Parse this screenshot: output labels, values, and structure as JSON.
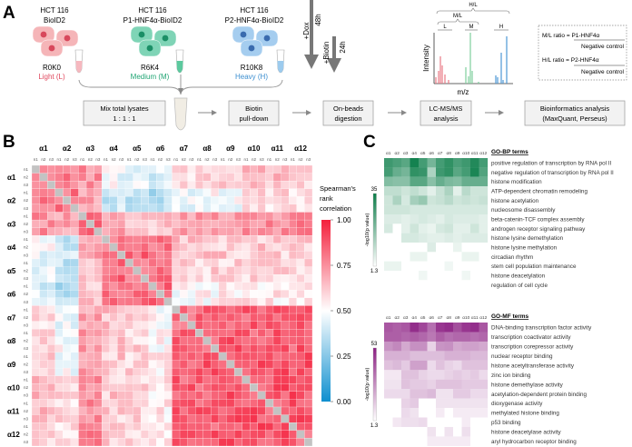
{
  "panel_labels": {
    "a": "A",
    "b": "B",
    "c": "C"
  },
  "panel_a": {
    "groups": [
      {
        "line1": "HCT 116",
        "line2": "BioID2",
        "label": "R0K0",
        "label_sub": "Light (L)",
        "color": "#e0485e",
        "cell": "#f5b5b8",
        "nucleus": "#d8485c",
        "tube": "#f6b8bf"
      },
      {
        "line1": "HCT 116",
        "line2": "P1-HNF4α-BioID2",
        "label": "R6K4",
        "label_sub": "Medium (M)",
        "color": "#21a574",
        "cell": "#7fd4b6",
        "nucleus": "#1b8f66",
        "tube": "#5cc99e"
      },
      {
        "line1": "HCT 116",
        "line2": "P2-HNF4α-BioID2",
        "label": "R10K8",
        "label_sub": "Heavy (H)",
        "color": "#3d8fd0",
        "cell": "#a5cdef",
        "nucleus": "#3a6bae",
        "tube": "#9ccbee"
      }
    ],
    "dox": {
      "label": "+Dox",
      "time": "48h"
    },
    "biotin": {
      "label": "+Biotin",
      "time": "24h"
    },
    "spectrum": {
      "ylabel": "Intensity",
      "xlabel": "m/z",
      "hl": "H/L",
      "ml": "M/L",
      "l": "L",
      "m": "M",
      "h": "H"
    },
    "ratio_box": {
      "ml_left": "M/L ratio = P1-HNF4α",
      "ml_den": "Negative control",
      "hl_left": "H/L ratio = P2-HNF4α",
      "hl_den": "Negative control"
    },
    "workflow": [
      {
        "line1": "Mix total lysates",
        "line2": "1 : 1 : 1"
      },
      {
        "line1": "Biotin",
        "line2": "pull-down"
      },
      {
        "line1": "On-beads",
        "line2": "digestion"
      },
      {
        "line1": "LC-MS/MS",
        "line2": "analysis"
      },
      {
        "line1": "Bioinformatics analysis",
        "line2": "(MaxQuant, Perseus)"
      }
    ]
  },
  "chart_data": [
    {
      "type": "heatmap",
      "title": "Spearman's rank correlation",
      "legend_title": [
        "Spearman's",
        "rank",
        "correlation"
      ],
      "legend_ticks": [
        "1.00",
        "0.75",
        "0.50",
        "0.25",
        "0.00"
      ],
      "range": [
        0,
        1
      ],
      "groups": [
        "α1",
        "α2",
        "α3",
        "α4",
        "α5",
        "α6",
        "α7",
        "α8",
        "α9",
        "α10",
        "α11",
        "α12"
      ],
      "replicates": [
        "n1",
        "n2",
        "n3"
      ],
      "colors": {
        "low": "#0e8fcf",
        "mid": "#ffffff",
        "high": "#f4203c",
        "diagonal": "#c3c3c3"
      },
      "group_mean_correlation": [
        [
          1.0,
          0.8,
          0.74,
          0.48,
          0.44,
          0.42,
          0.58,
          0.59,
          0.6,
          0.64,
          0.64,
          0.62
        ],
        [
          0.8,
          1.0,
          0.72,
          0.38,
          0.36,
          0.33,
          0.48,
          0.5,
          0.49,
          0.58,
          0.58,
          0.56
        ],
        [
          0.74,
          0.72,
          1.0,
          0.69,
          0.66,
          0.64,
          0.71,
          0.72,
          0.74,
          0.75,
          0.75,
          0.77
        ],
        [
          0.48,
          0.38,
          0.69,
          1.0,
          0.84,
          0.8,
          0.64,
          0.64,
          0.62,
          0.62,
          0.61,
          0.62
        ],
        [
          0.44,
          0.36,
          0.66,
          0.84,
          1.0,
          0.8,
          0.6,
          0.6,
          0.59,
          0.6,
          0.6,
          0.6
        ],
        [
          0.42,
          0.33,
          0.64,
          0.8,
          0.8,
          1.0,
          0.5,
          0.52,
          0.54,
          0.55,
          0.55,
          0.55
        ],
        [
          0.58,
          0.48,
          0.71,
          0.64,
          0.6,
          0.5,
          1.0,
          0.86,
          0.85,
          0.85,
          0.86,
          0.85
        ],
        [
          0.59,
          0.5,
          0.72,
          0.64,
          0.6,
          0.52,
          0.86,
          1.0,
          0.86,
          0.86,
          0.86,
          0.86
        ],
        [
          0.6,
          0.49,
          0.74,
          0.62,
          0.59,
          0.54,
          0.85,
          0.86,
          1.0,
          0.87,
          0.87,
          0.88
        ],
        [
          0.64,
          0.58,
          0.75,
          0.62,
          0.6,
          0.55,
          0.85,
          0.86,
          0.87,
          1.0,
          0.88,
          0.88
        ],
        [
          0.64,
          0.58,
          0.75,
          0.61,
          0.6,
          0.55,
          0.86,
          0.86,
          0.87,
          0.88,
          1.0,
          0.88
        ],
        [
          0.62,
          0.56,
          0.77,
          0.62,
          0.6,
          0.55,
          0.85,
          0.86,
          0.88,
          0.88,
          0.88,
          1.0
        ]
      ]
    },
    {
      "type": "heatmap",
      "title": "GO-BP terms",
      "colorbar_label": "-log10(p value)",
      "range": [
        1.3,
        35
      ],
      "range_labels": [
        "35",
        "1.3"
      ],
      "color_high": "#0b7d49",
      "columns": [
        "α1",
        "α2",
        "α3",
        "α4",
        "α5",
        "α6",
        "α7",
        "α8",
        "α9",
        "α10",
        "α11",
        "α12"
      ],
      "rows": [
        {
          "term": "positive regulation of transcription by RNA pol II",
          "values": [
            28,
            26,
            24,
            34,
            27,
            20,
            27,
            30,
            26,
            28,
            32,
            27
          ]
        },
        {
          "term": "negative regulation of transcription by RNA pol II",
          "values": [
            27,
            22,
            20,
            30,
            29,
            12,
            28,
            30,
            24,
            27,
            33,
            25
          ]
        },
        {
          "term": "histone modification",
          "values": [
            18,
            17,
            17,
            24,
            24,
            17,
            22,
            19,
            18,
            22,
            22,
            22
          ]
        },
        {
          "term": "ATP-dependent chromatin remodeling",
          "values": [
            9,
            9,
            7,
            9,
            7,
            4,
            8,
            12,
            4,
            10,
            7,
            7
          ]
        },
        {
          "term": "histone acetylation",
          "values": [
            7,
            12,
            6,
            13,
            15,
            7,
            8,
            10,
            7,
            8,
            7,
            8
          ]
        },
        {
          "term": "nucleosome disassembly",
          "values": [
            7,
            7,
            7,
            6,
            6,
            6,
            6,
            6,
            6,
            6,
            6,
            6
          ]
        },
        {
          "term": "beta-catenin-TCF complex assembly",
          "values": [
            5,
            5,
            4,
            5,
            6,
            5,
            4,
            6,
            5,
            5,
            5,
            4
          ]
        },
        {
          "term": "androgen receptor signaling pathway",
          "values": [
            6,
            null,
            4,
            7,
            4,
            3,
            6,
            7,
            4,
            4,
            7,
            4
          ]
        },
        {
          "term": "histone lysine demethylation",
          "values": [
            null,
            null,
            6,
            6,
            5,
            4,
            4,
            5,
            4,
            5,
            5,
            5
          ]
        },
        {
          "term": "histone lysine methylation",
          "values": [
            null,
            null,
            null,
            null,
            null,
            5,
            null,
            null,
            3,
            null,
            null,
            null
          ]
        },
        {
          "term": "circadian rhythm",
          "values": [
            null,
            null,
            null,
            3,
            3,
            null,
            null,
            null,
            null,
            3,
            3,
            null
          ]
        },
        {
          "term": "stem cell population maintenance",
          "values": [
            3,
            3,
            null,
            null,
            null,
            null,
            null,
            2,
            null,
            null,
            null,
            null
          ]
        },
        {
          "term": "histone deacetylation",
          "values": [
            null,
            null,
            null,
            null,
            2,
            null,
            null,
            null,
            null,
            2,
            null,
            null
          ]
        },
        {
          "term": "regulation of cell cycle",
          "values": [
            null,
            null,
            null,
            null,
            null,
            null,
            null,
            null,
            null,
            null,
            null,
            null
          ]
        }
      ]
    },
    {
      "type": "heatmap",
      "title": "GO-MF terms",
      "colorbar_label": "-log10(p value)",
      "range": [
        1.3,
        53
      ],
      "range_labels": [
        "53",
        "1.3"
      ],
      "color_high": "#8c1f83",
      "columns": [
        "α1",
        "α2",
        "α3",
        "α4",
        "α5",
        "α6",
        "α7",
        "α8",
        "α9",
        "α10",
        "α11",
        "α12"
      ],
      "rows": [
        {
          "term": "DNA-binding transcription factor activity",
          "values": [
            40,
            38,
            40,
            50,
            44,
            34,
            48,
            50,
            42,
            48,
            50,
            40
          ]
        },
        {
          "term": "transcription coactivator activity",
          "values": [
            38,
            38,
            36,
            38,
            36,
            32,
            38,
            34,
            36,
            36,
            34,
            36
          ]
        },
        {
          "term": "transcription corepressor activity",
          "values": [
            25,
            28,
            20,
            26,
            26,
            10,
            25,
            26,
            20,
            22,
            22,
            20
          ]
        },
        {
          "term": "nuclear receptor binding",
          "values": [
            18,
            18,
            18,
            15,
            15,
            15,
            15,
            18,
            18,
            18,
            16,
            16
          ]
        },
        {
          "term": "histone acetyltransferase activity",
          "values": [
            14,
            16,
            12,
            22,
            22,
            8,
            14,
            10,
            8,
            14,
            14,
            14
          ]
        },
        {
          "term": "zinc ion binding",
          "values": [
            5,
            5,
            14,
            14,
            10,
            8,
            8,
            10,
            12,
            10,
            12,
            8
          ]
        },
        {
          "term": "histone demethylase activity",
          "values": [
            6,
            6,
            14,
            12,
            12,
            10,
            14,
            14,
            14,
            12,
            12,
            12
          ]
        },
        {
          "term": "acetylation-dependent protein binding",
          "values": [
            8,
            8,
            8,
            14,
            14,
            16,
            6,
            6,
            12,
            12,
            8,
            8
          ]
        },
        {
          "term": "dioxygenase activity",
          "values": [
            null,
            null,
            10,
            12,
            null,
            null,
            6,
            6,
            6,
            6,
            6,
            6
          ]
        },
        {
          "term": "methylated histone binding",
          "values": [
            null,
            null,
            8,
            6,
            null,
            null,
            4,
            null,
            4,
            4,
            4,
            4
          ]
        },
        {
          "term": "p53 binding",
          "values": [
            null,
            5,
            7,
            7,
            8,
            null,
            null,
            null,
            null,
            4,
            null,
            null
          ]
        },
        {
          "term": "histone deacetylase activity",
          "values": [
            null,
            null,
            null,
            null,
            null,
            6,
            null,
            6,
            null,
            7,
            null,
            null
          ]
        },
        {
          "term": "aryl hydrocarbon receptor binding",
          "values": [
            null,
            null,
            null,
            null,
            null,
            4,
            4,
            4,
            4,
            4,
            null,
            null
          ]
        }
      ]
    }
  ]
}
